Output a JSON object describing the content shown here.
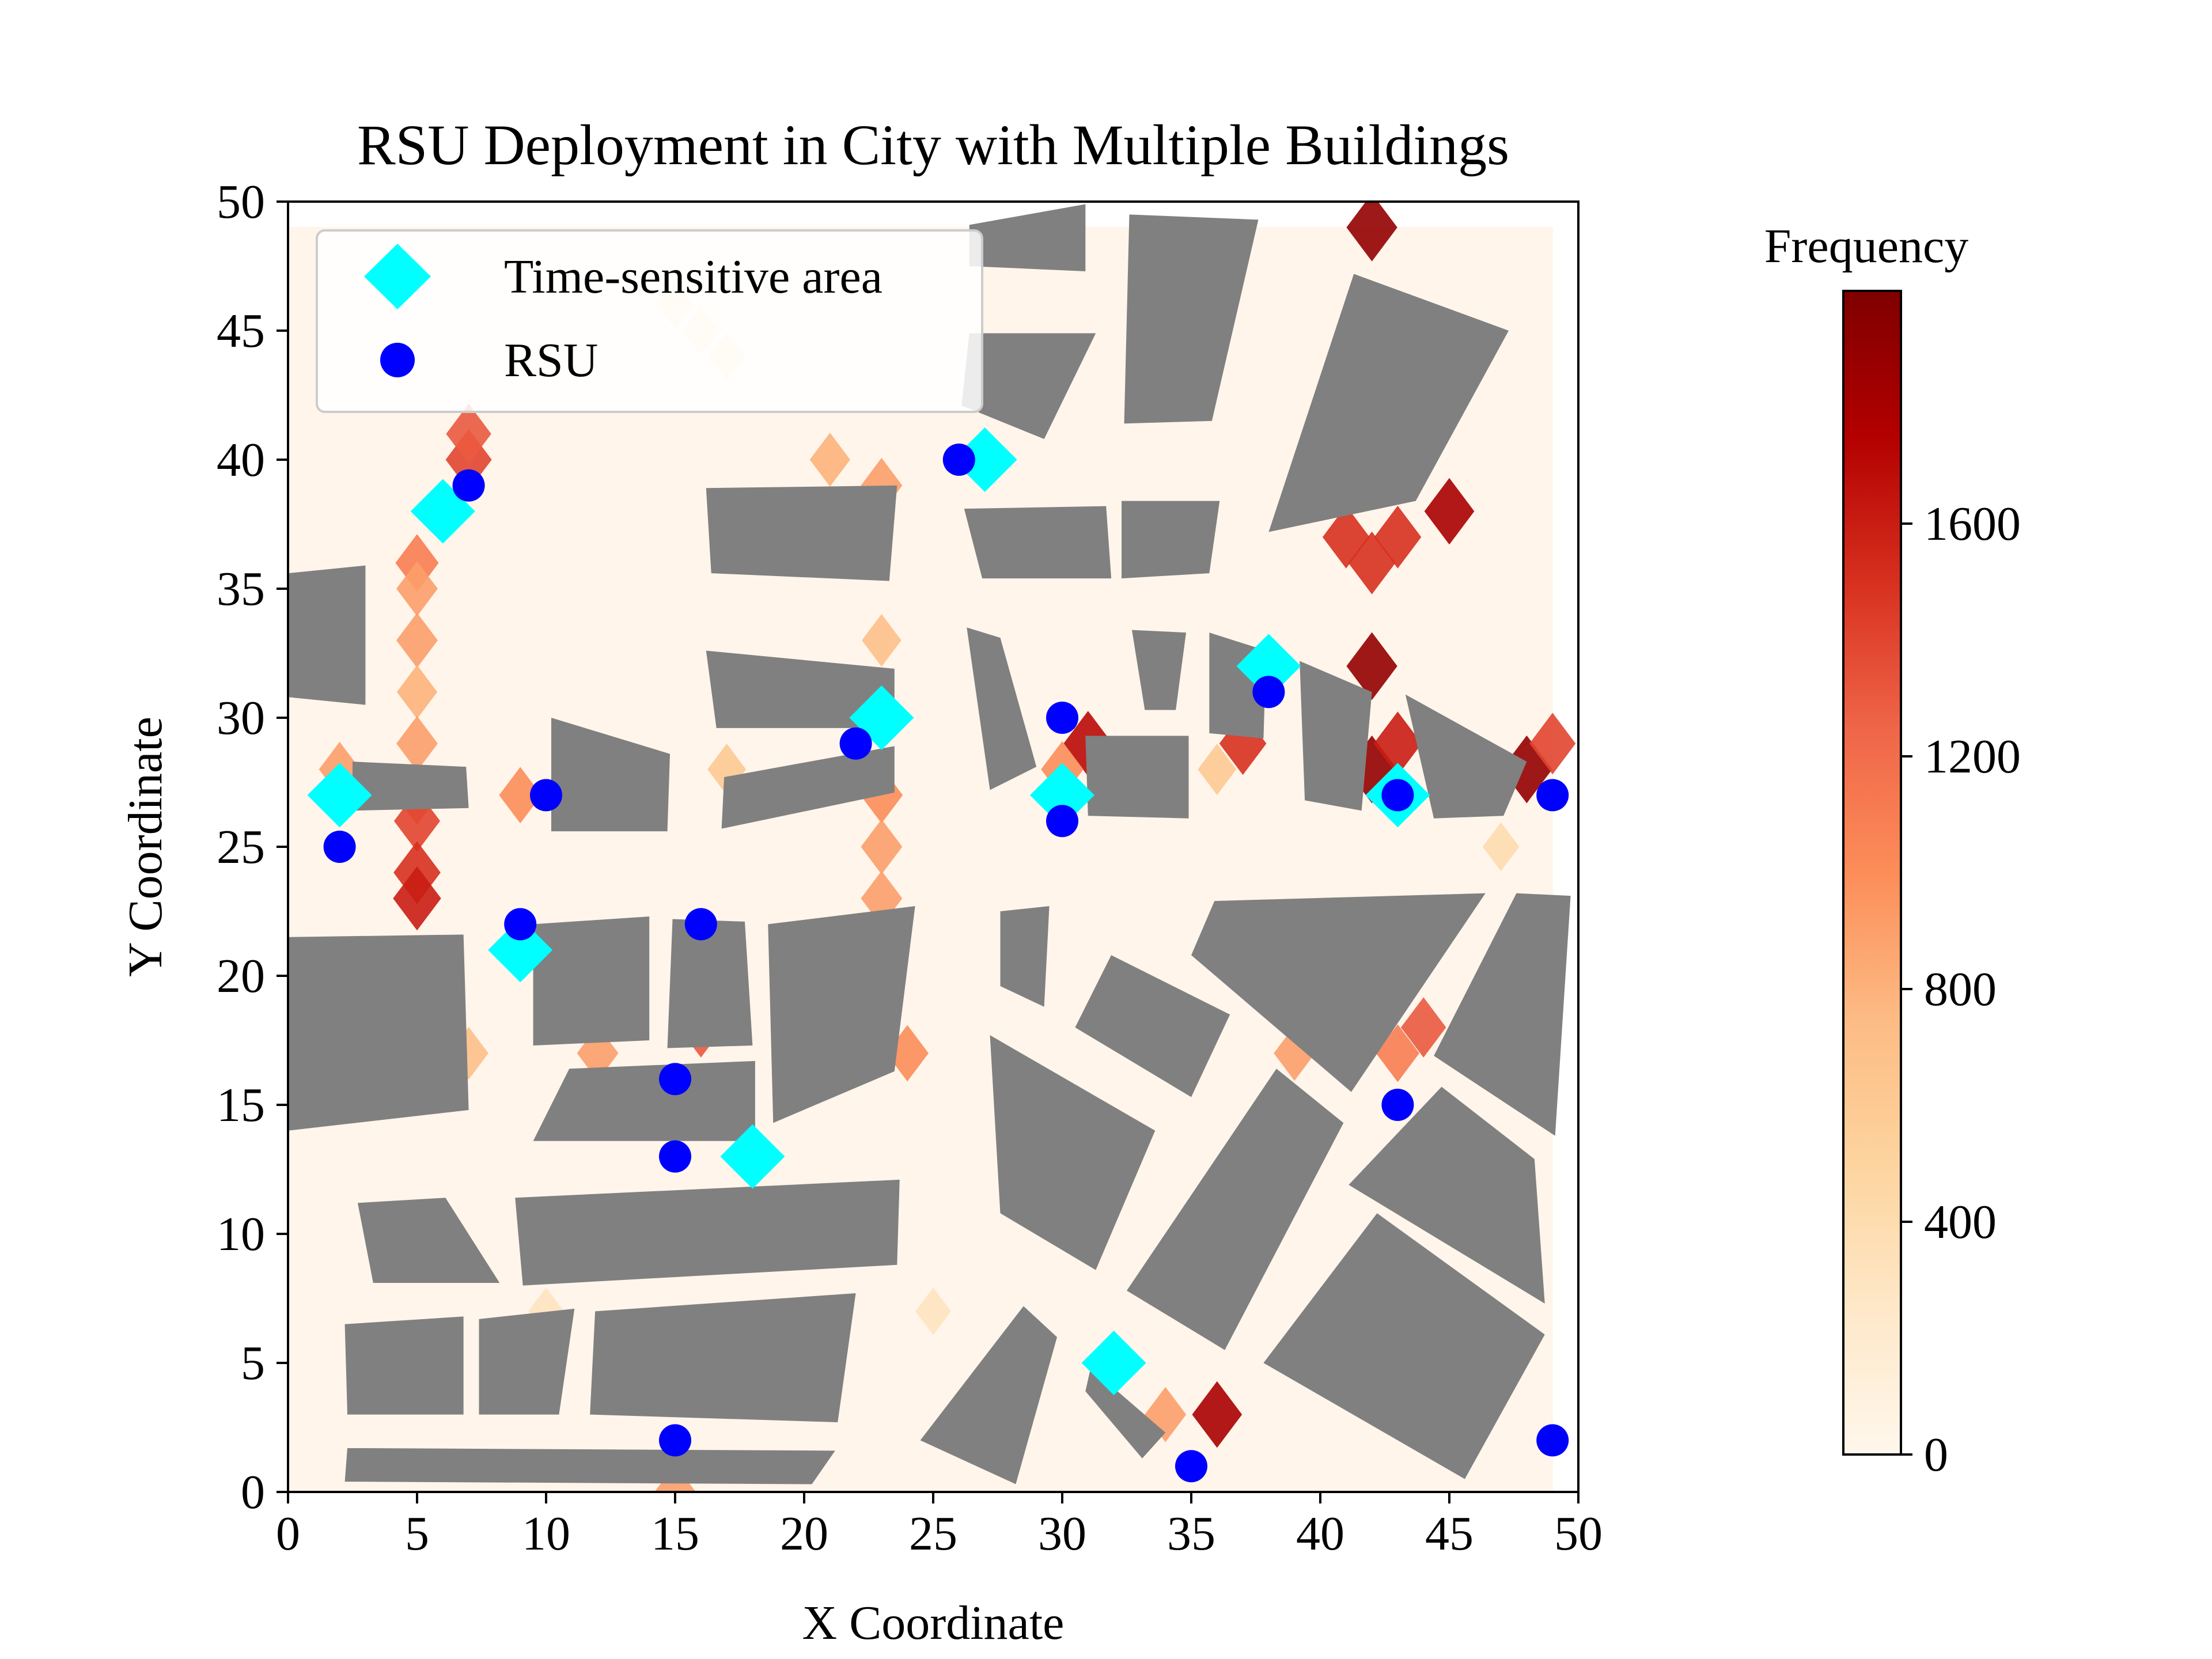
{
  "chart_data": {
    "type": "scatter",
    "title": "RSU Deployment in City with Multiple Buildings",
    "xlabel": "X Coordinate",
    "ylabel": "Y Coordinate",
    "xlim": [
      0,
      50
    ],
    "ylim": [
      0,
      50
    ],
    "xticks": [
      "0",
      "5",
      "10",
      "15",
      "20",
      "25",
      "30",
      "35",
      "40",
      "45",
      "50"
    ],
    "yticks": [
      "0",
      "5",
      "10",
      "15",
      "20",
      "25",
      "30",
      "35",
      "40",
      "45",
      "50"
    ],
    "grid": false,
    "legend": {
      "placement": "upper-left",
      "entries": [
        {
          "label": "Time-sensitive area",
          "marker": "diamond",
          "color": "#00FFFF"
        },
        {
          "label": "RSU",
          "marker": "circle",
          "color": "#0000FF"
        }
      ]
    },
    "series": [
      {
        "name": "Time-sensitive area",
        "marker": "diamond",
        "color": "#00FFFF",
        "points": [
          [
            6,
            38
          ],
          [
            2,
            27
          ],
          [
            9,
            21
          ],
          [
            18,
            13
          ],
          [
            23,
            30
          ],
          [
            27,
            40
          ],
          [
            30,
            27
          ],
          [
            38,
            32
          ],
          [
            43,
            27
          ],
          [
            32,
            5
          ]
        ]
      },
      {
        "name": "RSU",
        "marker": "circle",
        "color": "#0000FF",
        "points": [
          [
            7,
            39
          ],
          [
            2,
            25
          ],
          [
            10,
            27
          ],
          [
            9,
            22
          ],
          [
            16,
            22
          ],
          [
            15,
            16
          ],
          [
            15,
            13
          ],
          [
            15,
            2
          ],
          [
            22,
            29
          ],
          [
            26,
            40
          ],
          [
            30,
            30
          ],
          [
            30,
            26
          ],
          [
            38,
            31
          ],
          [
            43,
            27
          ],
          [
            49,
            27
          ],
          [
            43,
            15
          ],
          [
            35,
            1
          ],
          [
            49,
            2
          ]
        ]
      }
    ],
    "buildings": {
      "color": "#808080",
      "polygons": [
        [
          [
            0,
            35.6
          ],
          [
            3,
            35.9
          ],
          [
            3,
            30.5
          ],
          [
            0,
            30.8
          ]
        ],
        [
          [
            2.5,
            28.3
          ],
          [
            6.9,
            28.1
          ],
          [
            7.0,
            26.5
          ],
          [
            2.5,
            26.4
          ]
        ],
        [
          [
            10.2,
            30
          ],
          [
            14.8,
            28.6
          ],
          [
            14.7,
            25.6
          ],
          [
            10.2,
            25.6
          ]
        ],
        [
          [
            0,
            21.5
          ],
          [
            6.8,
            21.6
          ],
          [
            7,
            14.8
          ],
          [
            0,
            14
          ]
        ],
        [
          [
            9.5,
            22
          ],
          [
            14,
            22.3
          ],
          [
            14,
            17.5
          ],
          [
            9.5,
            17.3
          ]
        ],
        [
          [
            14.9,
            22.2
          ],
          [
            17.7,
            22.1
          ],
          [
            18,
            17.3
          ],
          [
            14.7,
            17.2
          ]
        ],
        [
          [
            18.6,
            22
          ],
          [
            24.3,
            22.7
          ],
          [
            23.5,
            16.3
          ],
          [
            18.8,
            14.3
          ]
        ],
        [
          [
            10.9,
            16.4
          ],
          [
            18.1,
            16.7
          ],
          [
            18.1,
            13.6
          ],
          [
            9.5,
            13.6
          ]
        ],
        [
          [
            2.7,
            11.2
          ],
          [
            6.1,
            11.4
          ],
          [
            8.2,
            8.1
          ],
          [
            3.3,
            8.1
          ]
        ],
        [
          [
            8.8,
            11.4
          ],
          [
            23.7,
            12.1
          ],
          [
            23.6,
            8.8
          ],
          [
            9.1,
            8.0
          ]
        ],
        [
          [
            2.2,
            6.5
          ],
          [
            6.8,
            6.8
          ],
          [
            6.8,
            3
          ],
          [
            2.3,
            3
          ]
        ],
        [
          [
            7.4,
            6.7
          ],
          [
            11.1,
            7.1
          ],
          [
            10.5,
            3
          ],
          [
            7.4,
            3
          ]
        ],
        [
          [
            11.9,
            7
          ],
          [
            22.0,
            7.7
          ],
          [
            21.3,
            2.7
          ],
          [
            11.7,
            3
          ]
        ],
        [
          [
            2.3,
            1.7
          ],
          [
            21.2,
            1.6
          ],
          [
            20.3,
            0.3
          ],
          [
            2.2,
            0.4
          ]
        ],
        [
          [
            16.2,
            38.9
          ],
          [
            23.6,
            39
          ],
          [
            23.3,
            35.3
          ],
          [
            16.4,
            35.6
          ]
        ],
        [
          [
            16.2,
            32.6
          ],
          [
            23.5,
            31.9
          ],
          [
            23.5,
            29.6
          ],
          [
            16.6,
            29.6
          ]
        ],
        [
          [
            16.9,
            27.7
          ],
          [
            23.5,
            28.9
          ],
          [
            23.5,
            27.1
          ],
          [
            16.8,
            25.7
          ]
        ],
        [
          [
            26.4,
            49.1
          ],
          [
            30.9,
            49.9
          ],
          [
            30.9,
            47.3
          ],
          [
            26.4,
            47.5
          ]
        ],
        [
          [
            26.4,
            44.9
          ],
          [
            31.3,
            44.9
          ],
          [
            29.3,
            40.8
          ],
          [
            26.1,
            42.1
          ]
        ],
        [
          [
            26.2,
            38.1
          ],
          [
            31.7,
            38.2
          ],
          [
            31.9,
            35.4
          ],
          [
            26.9,
            35.4
          ]
        ],
        [
          [
            32.6,
            49.5
          ],
          [
            37.6,
            49.3
          ],
          [
            35.8,
            41.5
          ],
          [
            32.4,
            41.4
          ]
        ],
        [
          [
            32.3,
            38.4
          ],
          [
            36.1,
            38.4
          ],
          [
            35.7,
            35.6
          ],
          [
            32.3,
            35.4
          ]
        ],
        [
          [
            26.3,
            33.5
          ],
          [
            27.6,
            33.1
          ],
          [
            29.0,
            28.1
          ],
          [
            27.2,
            27.2
          ]
        ],
        [
          [
            32.7,
            33.4
          ],
          [
            34.8,
            33.3
          ],
          [
            34.4,
            30.3
          ],
          [
            33.2,
            30.3
          ]
        ],
        [
          [
            35.7,
            33.3
          ],
          [
            37.9,
            32.6
          ],
          [
            37.8,
            29.2
          ],
          [
            35.7,
            29.4
          ]
        ],
        [
          [
            30.9,
            29.3
          ],
          [
            34.9,
            29.3
          ],
          [
            34.9,
            26.1
          ],
          [
            31.0,
            26.2
          ]
        ],
        [
          [
            39.2,
            32.2
          ],
          [
            42.0,
            31.0
          ],
          [
            41.6,
            26.4
          ],
          [
            39.4,
            26.8
          ]
        ],
        [
          [
            43.3,
            30.9
          ],
          [
            48,
            28.3
          ],
          [
            47.1,
            26.2
          ],
          [
            44.4,
            26.1
          ]
        ],
        [
          [
            41.3,
            47.2
          ],
          [
            47.3,
            45.0
          ],
          [
            43.7,
            38.4
          ],
          [
            38.0,
            37.2
          ]
        ],
        [
          [
            27.6,
            22.5
          ],
          [
            29.5,
            22.7
          ],
          [
            29.3,
            18.8
          ],
          [
            27.6,
            19.6
          ]
        ],
        [
          [
            31.9,
            20.8
          ],
          [
            36.5,
            18.5
          ],
          [
            35.0,
            15.3
          ],
          [
            30.5,
            18
          ]
        ],
        [
          [
            35.9,
            22.9
          ],
          [
            46.4,
            23.2
          ],
          [
            41.2,
            15.5
          ],
          [
            35.0,
            20.8
          ]
        ],
        [
          [
            47.6,
            23.2
          ],
          [
            49.7,
            23.1
          ],
          [
            49.1,
            13.8
          ],
          [
            44.4,
            16.9
          ]
        ],
        [
          [
            27.2,
            17.7
          ],
          [
            33.6,
            14.0
          ],
          [
            31.3,
            8.6
          ],
          [
            27.6,
            10.8
          ]
        ],
        [
          [
            38.3,
            16.4
          ],
          [
            40.9,
            14.3
          ],
          [
            36.3,
            5.5
          ],
          [
            32.5,
            7.8
          ]
        ],
        [
          [
            44.7,
            15.7
          ],
          [
            48.3,
            12.9
          ],
          [
            48.7,
            7.3
          ],
          [
            41.1,
            11.9
          ]
        ],
        [
          [
            42.2,
            10.8
          ],
          [
            48.7,
            6.1
          ],
          [
            45.6,
            0.5
          ],
          [
            37.8,
            5.0
          ]
        ],
        [
          [
            28.5,
            7.2
          ],
          [
            29.8,
            6.0
          ],
          [
            28.2,
            0.3
          ],
          [
            24.5,
            2.0
          ]
        ],
        [
          [
            31.1,
            4.8
          ],
          [
            34,
            2.3
          ],
          [
            33.1,
            1.3
          ],
          [
            30.9,
            3.9
          ]
        ]
      ]
    },
    "colorbar": {
      "label": "Frequency",
      "colormap": "OrRd",
      "range": [
        0,
        2000
      ],
      "ticks": [
        "0",
        "400",
        "800",
        "1200",
        "1600"
      ]
    },
    "heatmap_hotspots": [
      {
        "x": 7,
        "y": 40,
        "v": 1400
      },
      {
        "x": 7,
        "y": 41,
        "v": 1300
      },
      {
        "x": 5,
        "y": 36,
        "v": 1100
      },
      {
        "x": 5,
        "y": 35,
        "v": 900
      },
      {
        "x": 5,
        "y": 33,
        "v": 900
      },
      {
        "x": 5,
        "y": 31,
        "v": 800
      },
      {
        "x": 5,
        "y": 29,
        "v": 900
      },
      {
        "x": 5,
        "y": 27,
        "v": 1200
      },
      {
        "x": 5,
        "y": 26,
        "v": 1400
      },
      {
        "x": 5,
        "y": 24,
        "v": 1500
      },
      {
        "x": 5,
        "y": 23,
        "v": 1600
      },
      {
        "x": 2,
        "y": 28,
        "v": 900
      },
      {
        "x": 9,
        "y": 27,
        "v": 1000
      },
      {
        "x": 16,
        "y": 18,
        "v": 1300
      },
      {
        "x": 12,
        "y": 17,
        "v": 900
      },
      {
        "x": 7,
        "y": 17,
        "v": 700
      },
      {
        "x": 24,
        "y": 17,
        "v": 1000
      },
      {
        "x": 23,
        "y": 27,
        "v": 1000
      },
      {
        "x": 23,
        "y": 25,
        "v": 900
      },
      {
        "x": 23,
        "y": 23,
        "v": 900
      },
      {
        "x": 22,
        "y": 28,
        "v": 900
      },
      {
        "x": 17,
        "y": 28,
        "v": 600
      },
      {
        "x": 21,
        "y": 40,
        "v": 800
      },
      {
        "x": 23,
        "y": 39,
        "v": 900
      },
      {
        "x": 23,
        "y": 33,
        "v": 700
      },
      {
        "x": 15,
        "y": 0,
        "v": 900
      },
      {
        "x": 31,
        "y": 29,
        "v": 1700
      },
      {
        "x": 30,
        "y": 28,
        "v": 1000
      },
      {
        "x": 37,
        "y": 29,
        "v": 1500
      },
      {
        "x": 36,
        "y": 28,
        "v": 600
      },
      {
        "x": 42,
        "y": 32,
        "v": 1900
      },
      {
        "x": 42,
        "y": 28,
        "v": 1900
      },
      {
        "x": 43,
        "y": 29,
        "v": 1600
      },
      {
        "x": 48,
        "y": 28,
        "v": 1900
      },
      {
        "x": 49,
        "y": 29,
        "v": 1400
      },
      {
        "x": 42,
        "y": 49,
        "v": 1900
      },
      {
        "x": 41,
        "y": 37,
        "v": 1500
      },
      {
        "x": 42,
        "y": 36,
        "v": 1500
      },
      {
        "x": 43,
        "y": 37,
        "v": 1500
      },
      {
        "x": 45,
        "y": 38,
        "v": 1800
      },
      {
        "x": 44,
        "y": 18,
        "v": 1300
      },
      {
        "x": 43,
        "y": 17,
        "v": 1100
      },
      {
        "x": 39,
        "y": 17,
        "v": 900
      },
      {
        "x": 36,
        "y": 3,
        "v": 1800
      },
      {
        "x": 34,
        "y": 3,
        "v": 900
      },
      {
        "x": 47,
        "y": 25,
        "v": 400
      },
      {
        "x": 15,
        "y": 46,
        "v": 300
      },
      {
        "x": 16,
        "y": 45,
        "v": 300
      },
      {
        "x": 17,
        "y": 44,
        "v": 300
      },
      {
        "x": 10,
        "y": 7,
        "v": 300
      },
      {
        "x": 25,
        "y": 7,
        "v": 300
      },
      {
        "x": 1,
        "y": 17,
        "v": 700
      }
    ]
  }
}
